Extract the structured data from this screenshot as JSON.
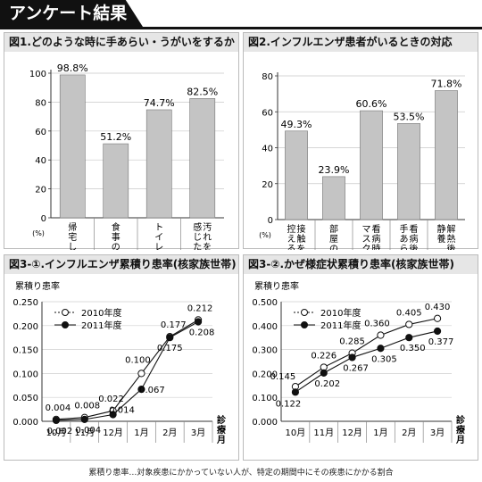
{
  "header": {
    "title": "アンケート結果"
  },
  "footnote": "累積り患率…対象疾患にかかっていない人が、特定の期間中にその疾患にかかる割合",
  "chart_data": [
    {
      "id": "fig1",
      "type": "bar",
      "title": "図1.どのような時に手あらい・うがいをするか",
      "unit_label": "(%)",
      "ylim": [
        0,
        100
      ],
      "yticks": [
        0,
        20,
        40,
        60,
        80,
        100
      ],
      "categories": [
        "帰宅した時",
        "食事の前",
        "トイレの後",
        "汚れを 感じたとき"
      ],
      "values": [
        98.8,
        51.2,
        74.7,
        82.5
      ],
      "value_labels": [
        "98.8%",
        "51.2%",
        "74.7%",
        "82.5%"
      ]
    },
    {
      "id": "fig2",
      "type": "bar",
      "title": "図2.インフルエンザ患者がいるときの対応",
      "unit_label": "(%)",
      "ylim": [
        0,
        80
      ],
      "yticks": [
        0,
        20,
        40,
        60,
        80
      ],
      "categories": [
        "接触を 控える",
        "部屋の換気",
        "看病時に マスク",
        "看病後に 手あらい",
        "解熱後も 静養"
      ],
      "values": [
        49.3,
        23.9,
        60.6,
        53.5,
        71.8
      ],
      "value_labels": [
        "49.3%",
        "23.9%",
        "60.6%",
        "53.5%",
        "71.8%"
      ]
    },
    {
      "id": "fig3_1",
      "type": "line",
      "title": "図3-①.インフルエンザ累積り患率(核家族世帯)",
      "ylabel": "累積り患率",
      "xlabel": "診療月",
      "ylim": [
        0,
        0.25
      ],
      "yticks": [
        "0.000",
        "0.050",
        "0.100",
        "0.150",
        "0.200",
        "0.250"
      ],
      "categories": [
        "10月",
        "11月",
        "12月",
        "1月",
        "2月",
        "3月"
      ],
      "series": [
        {
          "name": "2010年度",
          "marker": "open",
          "values": [
            0.004,
            0.008,
            0.022,
            0.1,
            0.177,
            0.212
          ],
          "labels": [
            "0.004",
            "0.008",
            "0.022",
            "0.100",
            "0.177",
            "0.212"
          ]
        },
        {
          "name": "2011年度",
          "marker": "filled",
          "values": [
            0.002,
            0.004,
            0.014,
            0.067,
            0.175,
            0.208
          ],
          "labels": [
            "0.002",
            "0.004",
            "0.014",
            "0.067",
            "0.175",
            "0.208"
          ]
        }
      ]
    },
    {
      "id": "fig3_2",
      "type": "line",
      "title": "図3-②.かぜ様症状累積り患率(核家族世帯)",
      "ylabel": "累積り患率",
      "xlabel": "診療月",
      "ylim": [
        0,
        0.5
      ],
      "yticks": [
        "0.000",
        "0.100",
        "0.200",
        "0.300",
        "0.400",
        "0.500"
      ],
      "categories": [
        "10月",
        "11月",
        "12月",
        "1月",
        "2月",
        "3月"
      ],
      "series": [
        {
          "name": "2010年度",
          "marker": "open",
          "values": [
            0.145,
            0.226,
            0.285,
            0.36,
            0.405,
            0.43
          ],
          "labels": [
            "0.145",
            "0.226",
            "0.285",
            "0.360",
            "0.405",
            "0.430"
          ]
        },
        {
          "name": "2011年度",
          "marker": "filled",
          "values": [
            0.122,
            0.202,
            0.267,
            0.305,
            0.35,
            0.377
          ],
          "labels": [
            "0.122",
            "0.202",
            "0.267",
            "0.305",
            "0.350",
            "0.377"
          ]
        }
      ]
    }
  ]
}
